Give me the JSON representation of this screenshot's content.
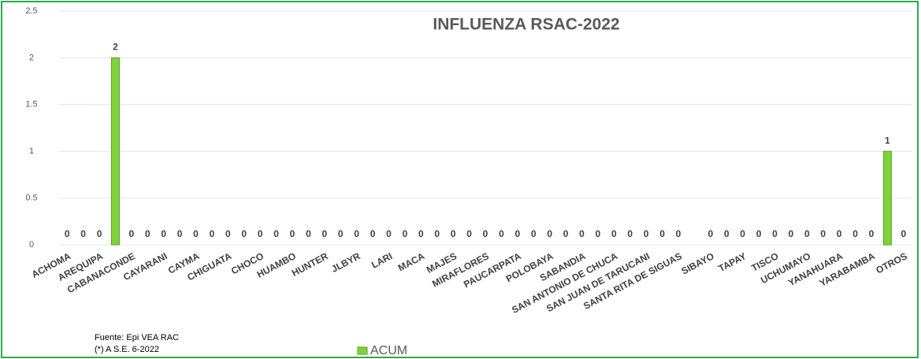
{
  "chart_data": {
    "type": "bar",
    "title": "INFLUENZA RSAC-2022",
    "categories": [
      "ACHOMA",
      null,
      "AREQUIPA",
      null,
      "CABANACONDE",
      null,
      "CAYARANI",
      null,
      "CAYMA",
      null,
      "CHIGUATA",
      null,
      "CHOCO",
      null,
      "HUAMBO",
      null,
      "HUNTER",
      null,
      "JLBYR",
      null,
      "LARI",
      null,
      "MACA",
      null,
      "MAJES",
      null,
      "MIRAFLORES",
      null,
      "PAUCARPATA",
      null,
      "POLOBAYA",
      null,
      "SABANDIA",
      null,
      "SAN ANTONIO DE CHUCA",
      null,
      "SAN JUAN DE TARUCANI",
      null,
      "SANTA RITA DE SIGUAS",
      null,
      "SIBAYO",
      null,
      "TAPAY",
      null,
      "TISCO",
      null,
      "UCHUMAYO",
      null,
      "YANAHUARA",
      null,
      "YARABAMBA",
      null,
      "OTROS"
    ],
    "series": [
      {
        "name": "ACUM",
        "color": "#7ed33a",
        "values": [
          0,
          0,
          0,
          2,
          0,
          0,
          0,
          0,
          0,
          0,
          0,
          0,
          0,
          0,
          0,
          0,
          0,
          0,
          0,
          0,
          0,
          0,
          0,
          0,
          0,
          0,
          0,
          0,
          0,
          0,
          0,
          0,
          0,
          0,
          0,
          0,
          0,
          0,
          0,
          null,
          0,
          0,
          0,
          0,
          0,
          0,
          0,
          0,
          0,
          0,
          0,
          1,
          0
        ]
      }
    ],
    "ylim": [
      0,
      2.5
    ],
    "yticks": [
      0,
      0.5,
      1,
      1.5,
      2,
      2.5
    ],
    "grid": true,
    "notes": [
      "Fuente:  Epi VEA RAC",
      "(*) A S.E. 6-2022"
    ]
  }
}
